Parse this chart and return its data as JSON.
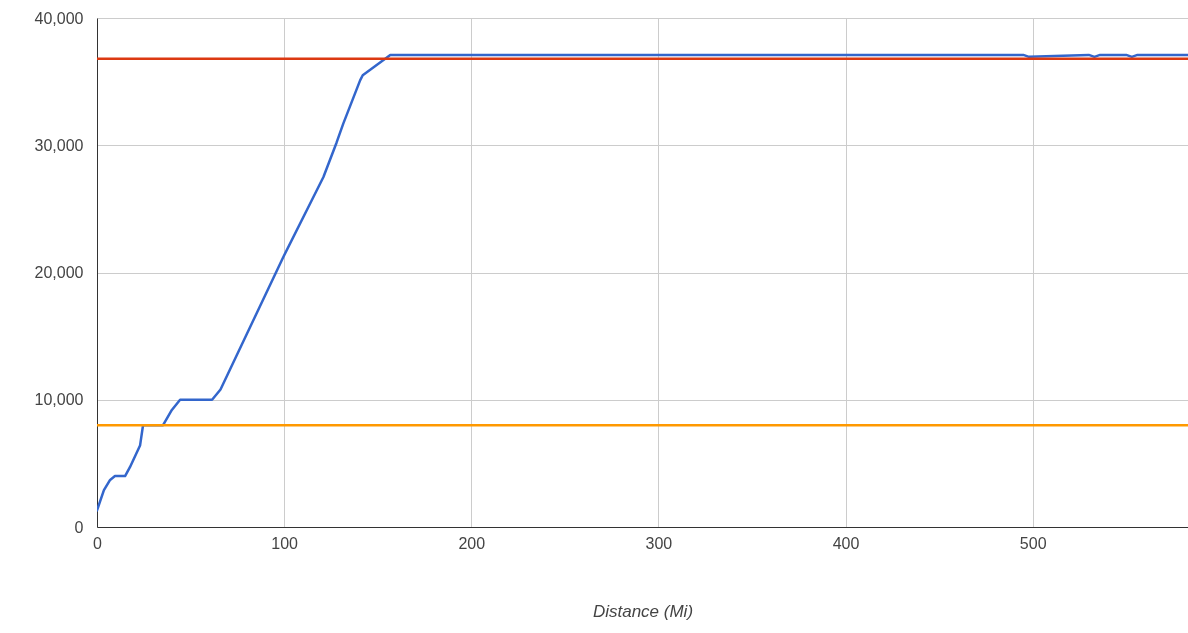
{
  "chart_data": {
    "type": "line",
    "xlabel": "Distance (Mi)",
    "xlim": [
      0,
      583
    ],
    "xticks": [
      0,
      100,
      200,
      300,
      400,
      500
    ],
    "ylim": [
      0,
      40000
    ],
    "yticks": [
      0,
      {
        "value": 10000,
        "label": "10,000"
      },
      {
        "value": 20000,
        "label": "20,000"
      },
      {
        "value": 30000,
        "label": "30,000"
      },
      {
        "value": 40000,
        "label": "40,000"
      }
    ],
    "grid": true,
    "series": [
      {
        "color": "#3366cc",
        "x": [
          0,
          3.7,
          7,
          9.6,
          15,
          17.6,
          23,
          24.6,
          35.3,
          40,
          44.4,
          61.5,
          66,
          99.5,
          121,
          128,
          131.6,
          140.6,
          142,
          154,
          156.7,
          200,
          300,
          400,
          495,
          498,
          530,
          533,
          536,
          550,
          553,
          556,
          583
        ],
        "values": [
          1300,
          2900,
          3700,
          4000,
          4000,
          4700,
          6400,
          8000,
          8000,
          9200,
          10000,
          10000,
          10800,
          21200,
          27500,
          30200,
          31700,
          35100,
          35500,
          36800,
          37100,
          37100,
          37100,
          37100,
          37100,
          36950,
          37100,
          36950,
          37100,
          37100,
          36950,
          37100,
          37100
        ]
      }
    ],
    "ref_lines": [
      {
        "axis": "y",
        "value": 36800,
        "color": "#dc3912"
      },
      {
        "axis": "y",
        "value": 8000,
        "color": "#ff9900"
      }
    ]
  }
}
